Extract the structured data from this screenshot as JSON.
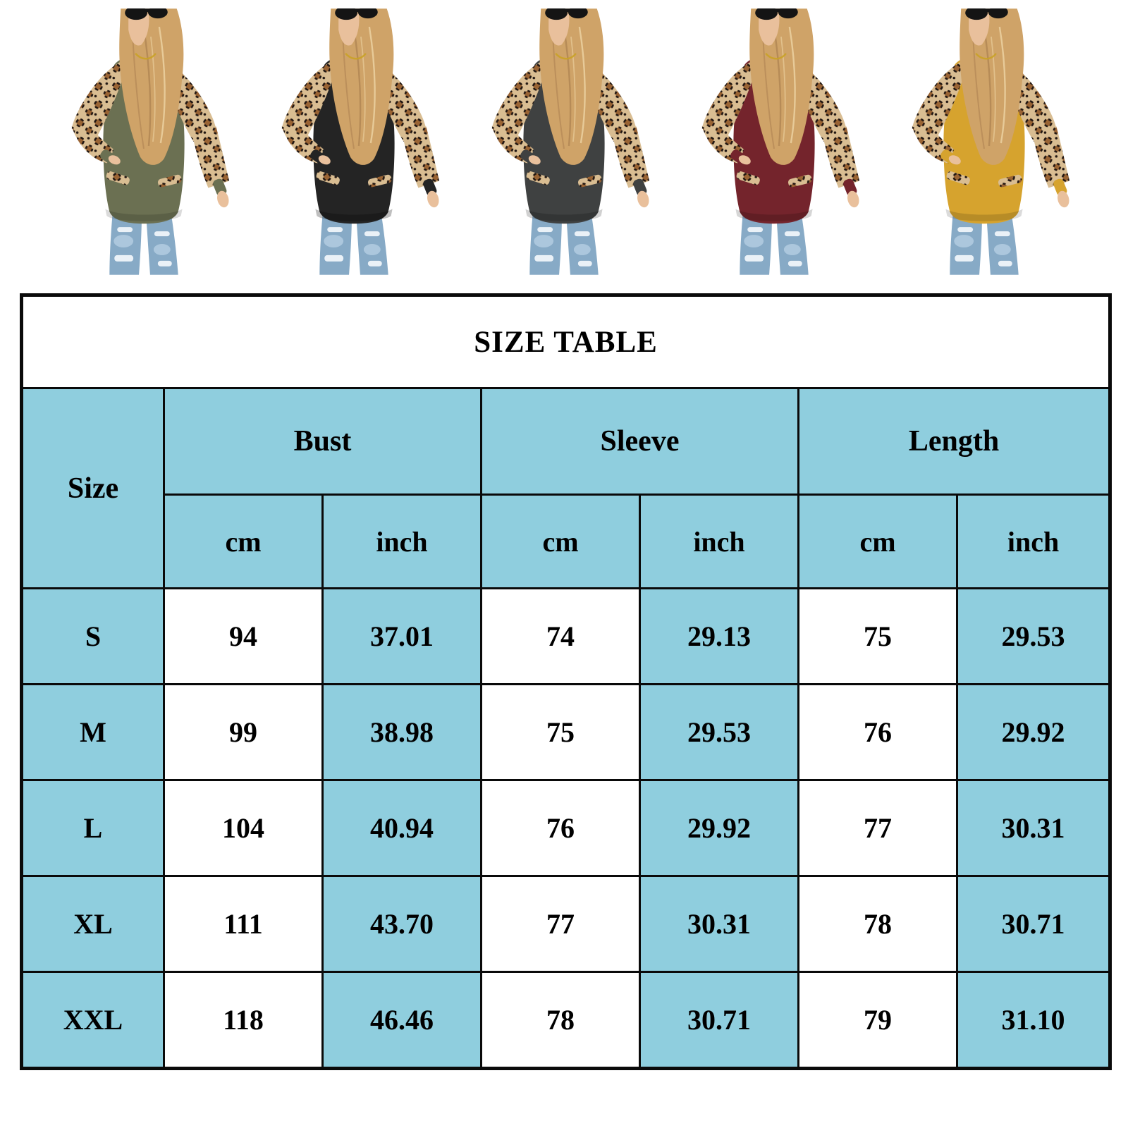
{
  "products": {
    "items": [
      {
        "name": "army-green",
        "color": "#6b7052",
        "hem_shade": 0.14
      },
      {
        "name": "black",
        "color": "#242424",
        "hem_shade": 0.25
      },
      {
        "name": "dark-gray",
        "color": "#3f4141",
        "hem_shade": 0.18
      },
      {
        "name": "wine-red",
        "color": "#74242c",
        "hem_shade": 0.16
      },
      {
        "name": "mustard-yellow",
        "color": "#d6a32e",
        "hem_shade": 0.14
      }
    ],
    "leopard": {
      "base": "#d9bd92",
      "spot": "#9a6434",
      "ring": "#201612"
    },
    "jeans": "#87aac6",
    "jeans_light": "#b3cde0",
    "rip": "#eaf1f7",
    "skin": "#e9c09c",
    "hair": "#cfa368",
    "hair_shadow": "#ab8050",
    "hair_light": "#ecd3a4",
    "sunglasses": "#141414",
    "necklace": "#c9a227"
  },
  "chart_data": {
    "type": "table",
    "title": "SIZE TABLE",
    "corner_label": "Size",
    "column_groups": [
      {
        "label": "Bust"
      },
      {
        "label": "Sleeve"
      },
      {
        "label": "Length"
      }
    ],
    "unit_row": [
      "cm",
      "inch",
      "cm",
      "inch",
      "cm",
      "inch"
    ],
    "rows": [
      {
        "size": "S",
        "values": [
          "94",
          "37.01",
          "74",
          "29.13",
          "75",
          "29.53"
        ]
      },
      {
        "size": "M",
        "values": [
          "99",
          "38.98",
          "75",
          "29.53",
          "76",
          "29.92"
        ]
      },
      {
        "size": "L",
        "values": [
          "104",
          "40.94",
          "76",
          "29.92",
          "77",
          "30.31"
        ]
      },
      {
        "size": "XL",
        "values": [
          "111",
          "43.70",
          "77",
          "30.31",
          "78",
          "30.71"
        ]
      },
      {
        "size": "XXL",
        "values": [
          "118",
          "46.46",
          "78",
          "30.71",
          "79",
          "31.10"
        ]
      }
    ],
    "style": {
      "header_bg": "#8fcede",
      "grid_color": "#0a0a0a",
      "alt_cell": "#ffffff"
    }
  }
}
